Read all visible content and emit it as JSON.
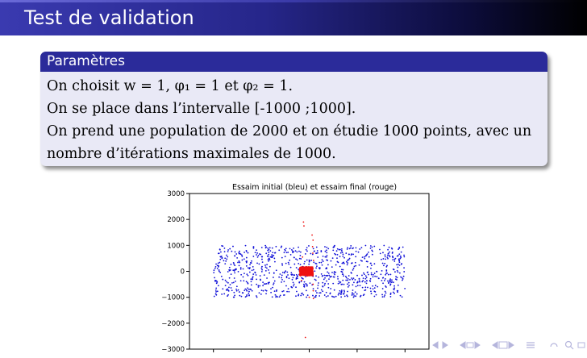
{
  "frame": {
    "title": "Test de validation"
  },
  "block": {
    "title": "Paramètres",
    "lines": [
      "On choisit w = 1, φ₁ = 1 et φ₂ = 1.",
      "On se place dans l’intervalle [-1000 ;1000].",
      "On prend une population de 2000 et on étudie 1000 points, avec un",
      "nombre d’itérations maximales de 1000."
    ]
  },
  "colors": {
    "header": "#2b2b9a",
    "block_bg": "#e9e9f6",
    "initial_swarm": "#1010d8",
    "final_swarm": "#ee1111",
    "nav": "#b5b5dc"
  },
  "navigation": {
    "icons": [
      "nav-left-icon",
      "nav-right-icon",
      "nav-section-left-icon",
      "nav-section-right-icon",
      "nav-subsection-left-icon",
      "nav-subsection-right-icon",
      "nav-align-icon",
      "nav-undo-icon",
      "nav-search-icon"
    ]
  },
  "chart_data": {
    "type": "scatter",
    "title": "Essaim initial (bleu) et essaim final (rouge)",
    "xlabel": "",
    "ylabel": "",
    "ylim": [
      -3000,
      3000
    ],
    "yticks": [
      3000,
      2000,
      1000,
      0,
      -1000,
      -2000,
      -3000
    ],
    "ytick_labels": [
      "3000",
      "2000",
      "1000",
      "0",
      "−1000",
      "−2000",
      "−3000"
    ],
    "xlim": [
      -1250,
      1250
    ],
    "grid": false,
    "series": [
      {
        "description": "initial swarm (blue), ~1000 points uniformly spread over x in [-1000, 1000] and y in [-1000, 1000]",
        "color": "#1010d8",
        "count": 900,
        "x_range": [
          -1000,
          1000
        ],
        "y_range": [
          -1000,
          1000
        ]
      },
      {
        "description": "final swarm (red), tightly clustered around the origin",
        "color": "#ee1111",
        "cluster": {
          "x_range": [
            -100,
            40
          ],
          "y_range": [
            -170,
            170
          ],
          "count": 700
        },
        "outliers": [
          {
            "x": -60,
            "y": 1900
          },
          {
            "x": -55,
            "y": 1750
          },
          {
            "x": 30,
            "y": 1400
          },
          {
            "x": 40,
            "y": 1200
          },
          {
            "x": 35,
            "y": 950
          },
          {
            "x": 38,
            "y": 700
          },
          {
            "x": -70,
            "y": 550
          },
          {
            "x": 45,
            "y": 420
          },
          {
            "x": -80,
            "y": -350
          },
          {
            "x": 40,
            "y": -500
          },
          {
            "x": 42,
            "y": -750
          },
          {
            "x": -40,
            "y": -2550
          },
          {
            "x": 0,
            "y": -1000
          },
          {
            "x": 44,
            "y": -1050
          }
        ]
      }
    ]
  }
}
